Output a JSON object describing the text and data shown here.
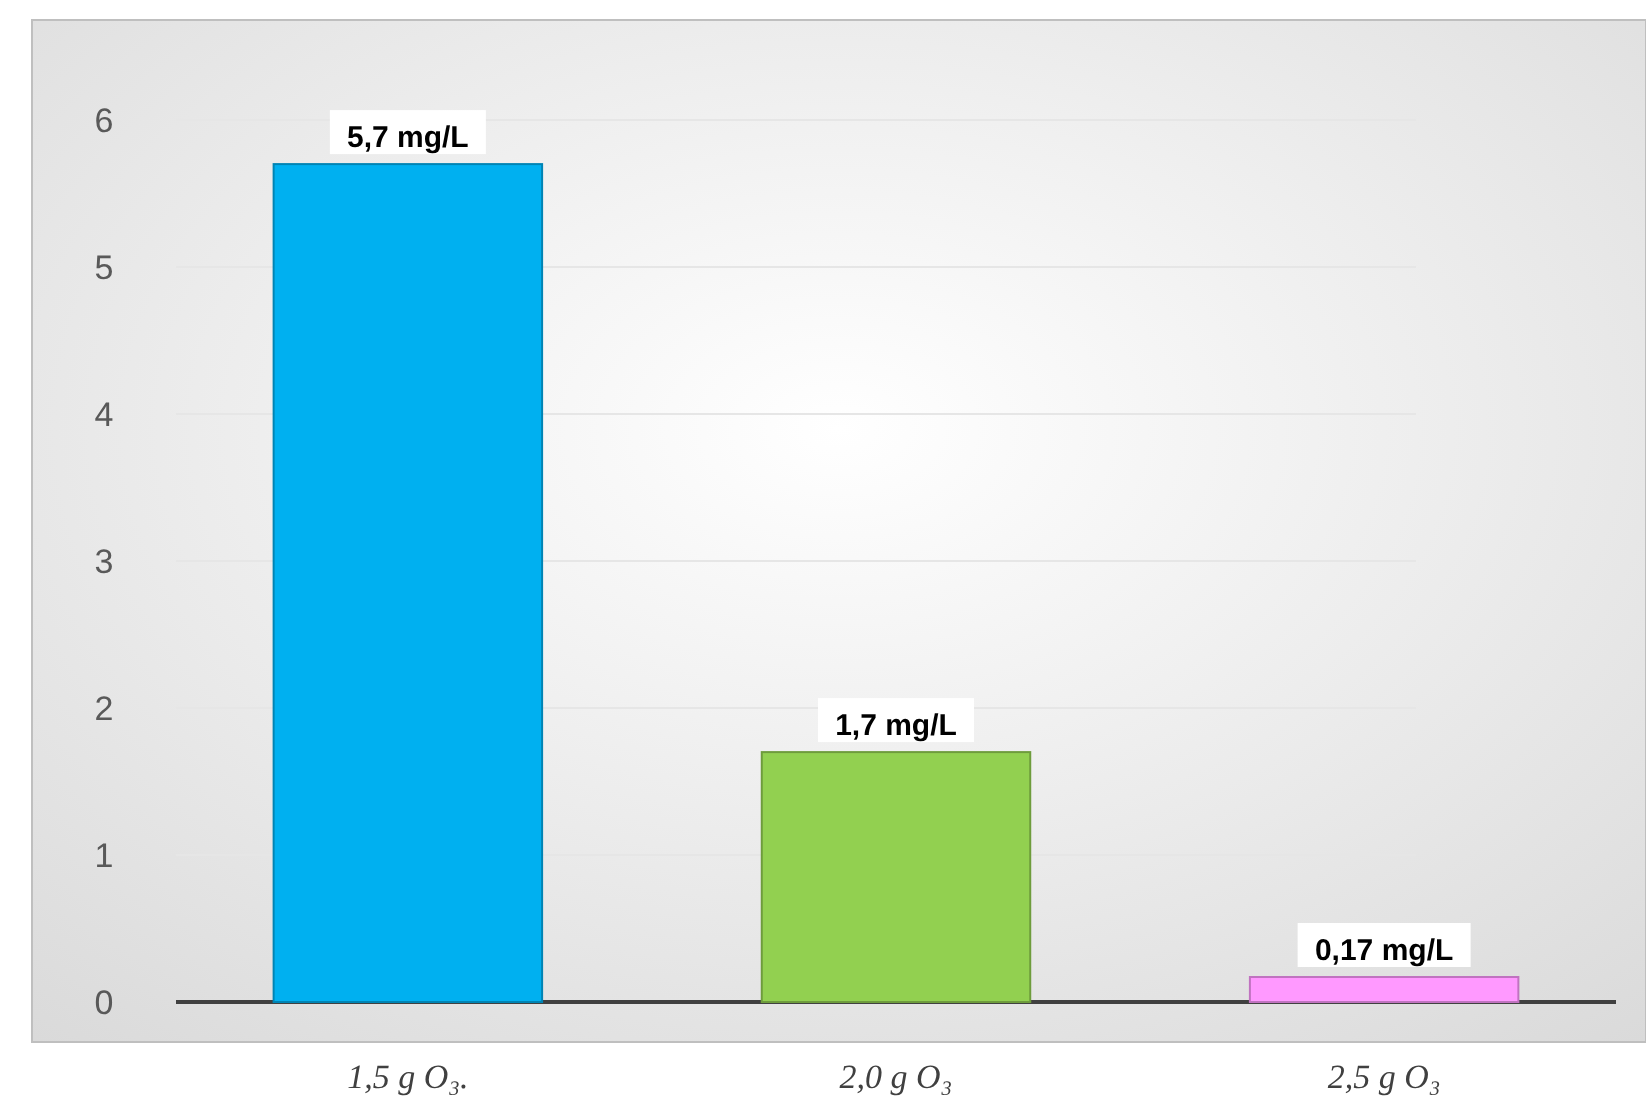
{
  "chart_data": {
    "type": "bar",
    "categories": [
      "1,5 g O₃.",
      "2,0 g O₃",
      "2,5 g O₃"
    ],
    "values": [
      5.7,
      1.7,
      0.17
    ],
    "colors": [
      "#00b0f0",
      "#92d050",
      "#ff99ff"
    ],
    "value_labels": [
      "5,7 mg/L",
      "1,7 mg/L",
      "0,17 mg/L"
    ],
    "ylim": [
      0,
      6
    ],
    "yticks": [
      0,
      1,
      2,
      3,
      4,
      5,
      6
    ],
    "grid": "y"
  }
}
